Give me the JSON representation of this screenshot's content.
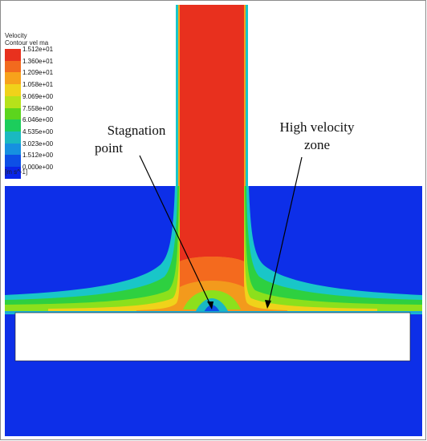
{
  "legend": {
    "title_line1": "Velocity",
    "title_line2": "Contour vel ma",
    "ticks": [
      "1.512e+01",
      "1.360e+01",
      "1.209e+01",
      "1.058e+01",
      "9.069e+00",
      "7.558e+00",
      "6.046e+00",
      "4.535e+00",
      "3.023e+00",
      "1.512e+00",
      "0.000e+00"
    ],
    "unit": "[m s^-1]",
    "colors": [
      "#e8311e",
      "#f26a1e",
      "#f7a21b",
      "#f0d21a",
      "#b6e21a",
      "#5cd51d",
      "#1ccd5c",
      "#1ab9c0",
      "#1690e0",
      "#0d4fe6",
      "#0a25e8"
    ]
  },
  "annotations": {
    "stagnation_line1": "Stagnation",
    "stagnation_line2": "point",
    "high_velocity_line1": "High velocity",
    "high_velocity_line2": "zone"
  },
  "colors": {
    "background_flow": "#0d2fe8",
    "jet_core": "#e8301e",
    "plate": "#ffffff"
  }
}
